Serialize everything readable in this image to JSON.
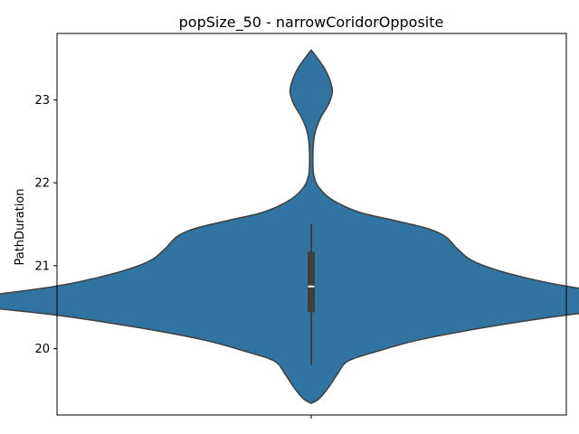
{
  "chart_data": {
    "type": "violin",
    "title": "popSize_50 - narrowCoridorOpposite",
    "xlabel": "",
    "ylabel": "PathDuration",
    "ylim": [
      19.2,
      23.8
    ],
    "yticks": [
      20,
      21,
      22,
      23
    ],
    "ytick_labels": [
      "20",
      "21",
      "22",
      "23"
    ],
    "categories": [
      ""
    ],
    "grid": false,
    "legend": "none",
    "violin_color": "#3274a1",
    "outline_color": "#3f3f3f",
    "box_color": "#3f3f3f",
    "median_color": "#ffffff",
    "density_max_halfwidth": 0.5,
    "density": [
      [
        19.34,
        0.0
      ],
      [
        19.4,
        0.02
      ],
      [
        19.55,
        0.045
      ],
      [
        19.7,
        0.065
      ],
      [
        19.85,
        0.09
      ],
      [
        19.95,
        0.15
      ],
      [
        20.1,
        0.26
      ],
      [
        20.25,
        0.42
      ],
      [
        20.4,
        0.62
      ],
      [
        20.5,
        0.8
      ],
      [
        20.55,
        0.835
      ],
      [
        20.62,
        0.82
      ],
      [
        20.75,
        0.63
      ],
      [
        20.9,
        0.49
      ],
      [
        21.05,
        0.4
      ],
      [
        21.2,
        0.36
      ],
      [
        21.35,
        0.33
      ],
      [
        21.45,
        0.285
      ],
      [
        21.55,
        0.2
      ],
      [
        21.65,
        0.115
      ],
      [
        21.8,
        0.05
      ],
      [
        21.95,
        0.018
      ],
      [
        22.1,
        0.006
      ],
      [
        22.3,
        0.004
      ],
      [
        22.5,
        0.006
      ],
      [
        22.65,
        0.012
      ],
      [
        22.8,
        0.025
      ],
      [
        22.95,
        0.043
      ],
      [
        23.1,
        0.052
      ],
      [
        23.25,
        0.045
      ],
      [
        23.4,
        0.03
      ],
      [
        23.55,
        0.008
      ],
      [
        23.6,
        0.0
      ]
    ],
    "box": {
      "q1": 20.44,
      "median": 20.75,
      "q3": 21.17,
      "whisker_low": 19.8,
      "whisker_high": 21.5
    }
  }
}
